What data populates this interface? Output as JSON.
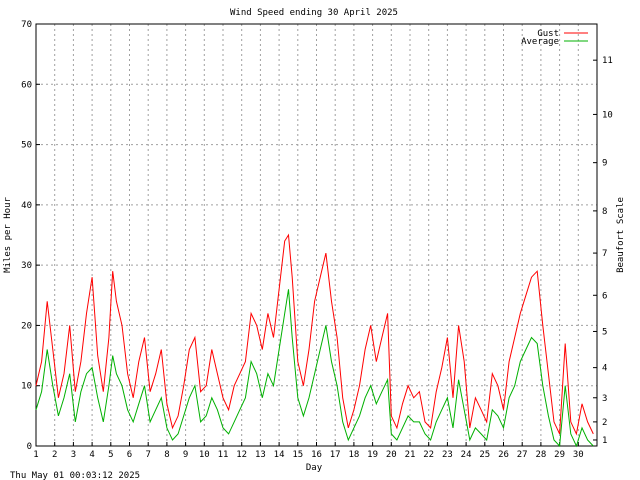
{
  "chart_data": {
    "type": "line",
    "title": "Wind Speed ending 30 April 2025",
    "xlabel": "Day",
    "ylabel": "Miles per Hour",
    "y2label": "Beaufort Scale",
    "ylim": [
      0,
      70
    ],
    "xlim": [
      1,
      31
    ],
    "yticks": [
      "0",
      "10",
      "20",
      "30",
      "40",
      "50",
      "60",
      "70"
    ],
    "xticks": [
      "1",
      "2",
      "3",
      "4",
      "5",
      "6",
      "7",
      "8",
      "9",
      "10",
      "11",
      "12",
      "13",
      "14",
      "15",
      "16",
      "17",
      "18",
      "19",
      "20",
      "21",
      "22",
      "23",
      "24",
      "25",
      "26",
      "27",
      "28",
      "29",
      "30"
    ],
    "beaufort_ticks": [
      {
        "label": "1",
        "mph": 1
      },
      {
        "label": "2",
        "mph": 4
      },
      {
        "label": "3",
        "mph": 8
      },
      {
        "label": "4",
        "mph": 13
      },
      {
        "label": "5",
        "mph": 19
      },
      {
        "label": "6",
        "mph": 25
      },
      {
        "label": "7",
        "mph": 32
      },
      {
        "label": "8",
        "mph": 39
      },
      {
        "label": "9",
        "mph": 47
      },
      {
        "label": "10",
        "mph": 55
      },
      {
        "label": "11",
        "mph": 64
      }
    ],
    "grid": true,
    "legend_position": "top-right",
    "series": [
      {
        "name": "Gust",
        "color": "#ff0000",
        "values": [
          [
            1.0,
            10
          ],
          [
            1.3,
            14
          ],
          [
            1.6,
            24
          ],
          [
            1.9,
            16
          ],
          [
            2.2,
            8
          ],
          [
            2.5,
            12
          ],
          [
            2.8,
            20
          ],
          [
            3.1,
            9
          ],
          [
            3.4,
            14
          ],
          [
            3.7,
            22
          ],
          [
            4.0,
            28
          ],
          [
            4.3,
            15
          ],
          [
            4.6,
            9
          ],
          [
            4.9,
            18
          ],
          [
            5.1,
            29
          ],
          [
            5.3,
            24
          ],
          [
            5.6,
            20
          ],
          [
            5.9,
            12
          ],
          [
            6.2,
            8
          ],
          [
            6.5,
            14
          ],
          [
            6.8,
            18
          ],
          [
            7.1,
            9
          ],
          [
            7.4,
            12
          ],
          [
            7.7,
            16
          ],
          [
            8.0,
            7
          ],
          [
            8.3,
            3
          ],
          [
            8.6,
            5
          ],
          [
            8.9,
            10
          ],
          [
            9.2,
            16
          ],
          [
            9.5,
            18
          ],
          [
            9.8,
            9
          ],
          [
            10.1,
            10
          ],
          [
            10.4,
            16
          ],
          [
            10.7,
            12
          ],
          [
            11.0,
            8
          ],
          [
            11.3,
            6
          ],
          [
            11.6,
            10
          ],
          [
            11.9,
            12
          ],
          [
            12.2,
            14
          ],
          [
            12.5,
            22
          ],
          [
            12.8,
            20
          ],
          [
            13.1,
            16
          ],
          [
            13.4,
            22
          ],
          [
            13.7,
            18
          ],
          [
            14.0,
            26
          ],
          [
            14.3,
            34
          ],
          [
            14.5,
            35
          ],
          [
            14.7,
            28
          ],
          [
            15.0,
            14
          ],
          [
            15.3,
            10
          ],
          [
            15.6,
            16
          ],
          [
            15.9,
            24
          ],
          [
            16.2,
            28
          ],
          [
            16.5,
            32
          ],
          [
            16.8,
            24
          ],
          [
            17.1,
            18
          ],
          [
            17.4,
            8
          ],
          [
            17.7,
            3
          ],
          [
            18.0,
            6
          ],
          [
            18.3,
            10
          ],
          [
            18.6,
            16
          ],
          [
            18.9,
            20
          ],
          [
            19.2,
            14
          ],
          [
            19.5,
            18
          ],
          [
            19.8,
            22
          ],
          [
            20.0,
            5
          ],
          [
            20.3,
            3
          ],
          [
            20.6,
            7
          ],
          [
            20.9,
            10
          ],
          [
            21.2,
            8
          ],
          [
            21.5,
            9
          ],
          [
            21.8,
            4
          ],
          [
            22.1,
            3
          ],
          [
            22.4,
            9
          ],
          [
            22.7,
            13
          ],
          [
            23.0,
            18
          ],
          [
            23.3,
            8
          ],
          [
            23.6,
            20
          ],
          [
            23.9,
            14
          ],
          [
            24.2,
            3
          ],
          [
            24.5,
            8
          ],
          [
            24.8,
            6
          ],
          [
            25.1,
            4
          ],
          [
            25.4,
            12
          ],
          [
            25.7,
            10
          ],
          [
            26.0,
            6
          ],
          [
            26.3,
            14
          ],
          [
            26.6,
            18
          ],
          [
            26.9,
            22
          ],
          [
            27.2,
            25
          ],
          [
            27.5,
            28
          ],
          [
            27.8,
            29
          ],
          [
            28.1,
            20
          ],
          [
            28.4,
            12
          ],
          [
            28.7,
            4
          ],
          [
            29.0,
            2
          ],
          [
            29.3,
            17
          ],
          [
            29.6,
            4
          ],
          [
            29.9,
            2
          ],
          [
            30.2,
            7
          ],
          [
            30.5,
            4
          ],
          [
            30.8,
            2
          ]
        ]
      },
      {
        "name": "Average",
        "color": "#00b000",
        "values": [
          [
            1.0,
            6
          ],
          [
            1.3,
            9
          ],
          [
            1.6,
            16
          ],
          [
            1.9,
            10
          ],
          [
            2.2,
            5
          ],
          [
            2.5,
            8
          ],
          [
            2.8,
            12
          ],
          [
            3.1,
            4
          ],
          [
            3.4,
            9
          ],
          [
            3.7,
            12
          ],
          [
            4.0,
            13
          ],
          [
            4.3,
            8
          ],
          [
            4.6,
            4
          ],
          [
            4.9,
            10
          ],
          [
            5.1,
            15
          ],
          [
            5.3,
            12
          ],
          [
            5.6,
            10
          ],
          [
            5.9,
            6
          ],
          [
            6.2,
            4
          ],
          [
            6.5,
            7
          ],
          [
            6.8,
            10
          ],
          [
            7.1,
            4
          ],
          [
            7.4,
            6
          ],
          [
            7.7,
            8
          ],
          [
            8.0,
            3
          ],
          [
            8.3,
            1
          ],
          [
            8.6,
            2
          ],
          [
            8.9,
            5
          ],
          [
            9.2,
            8
          ],
          [
            9.5,
            10
          ],
          [
            9.8,
            4
          ],
          [
            10.1,
            5
          ],
          [
            10.4,
            8
          ],
          [
            10.7,
            6
          ],
          [
            11.0,
            3
          ],
          [
            11.3,
            2
          ],
          [
            11.6,
            4
          ],
          [
            11.9,
            6
          ],
          [
            12.2,
            8
          ],
          [
            12.5,
            14
          ],
          [
            12.8,
            12
          ],
          [
            13.1,
            8
          ],
          [
            13.4,
            12
          ],
          [
            13.7,
            10
          ],
          [
            14.0,
            16
          ],
          [
            14.3,
            22
          ],
          [
            14.5,
            26
          ],
          [
            14.7,
            18
          ],
          [
            15.0,
            8
          ],
          [
            15.3,
            5
          ],
          [
            15.6,
            8
          ],
          [
            15.9,
            12
          ],
          [
            16.2,
            16
          ],
          [
            16.5,
            20
          ],
          [
            16.8,
            14
          ],
          [
            17.1,
            10
          ],
          [
            17.4,
            4
          ],
          [
            17.7,
            1
          ],
          [
            18.0,
            3
          ],
          [
            18.3,
            5
          ],
          [
            18.6,
            8
          ],
          [
            18.9,
            10
          ],
          [
            19.2,
            7
          ],
          [
            19.5,
            9
          ],
          [
            19.8,
            11
          ],
          [
            20.0,
            2
          ],
          [
            20.3,
            1
          ],
          [
            20.6,
            3
          ],
          [
            20.9,
            5
          ],
          [
            21.2,
            4
          ],
          [
            21.5,
            4
          ],
          [
            21.8,
            2
          ],
          [
            22.1,
            1
          ],
          [
            22.4,
            4
          ],
          [
            22.7,
            6
          ],
          [
            23.0,
            8
          ],
          [
            23.3,
            3
          ],
          [
            23.6,
            11
          ],
          [
            23.9,
            6
          ],
          [
            24.2,
            1
          ],
          [
            24.5,
            3
          ],
          [
            24.8,
            2
          ],
          [
            25.1,
            1
          ],
          [
            25.4,
            6
          ],
          [
            25.7,
            5
          ],
          [
            26.0,
            3
          ],
          [
            26.3,
            8
          ],
          [
            26.6,
            10
          ],
          [
            26.9,
            14
          ],
          [
            27.2,
            16
          ],
          [
            27.5,
            18
          ],
          [
            27.8,
            17
          ],
          [
            28.1,
            10
          ],
          [
            28.4,
            5
          ],
          [
            28.7,
            1
          ],
          [
            29.0,
            0
          ],
          [
            29.3,
            10
          ],
          [
            29.6,
            2
          ],
          [
            29.9,
            0
          ],
          [
            30.2,
            3
          ],
          [
            30.5,
            1
          ],
          [
            30.8,
            0
          ]
        ]
      }
    ]
  },
  "footer": {
    "timestamp": "Thu May 01 00:03:12 2025"
  }
}
